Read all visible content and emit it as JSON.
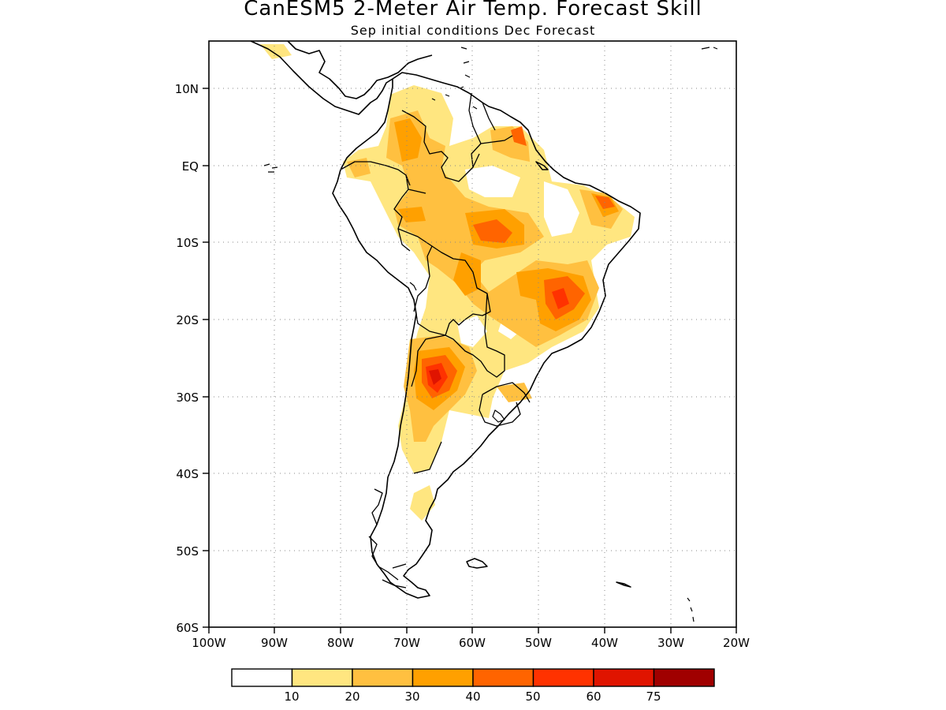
{
  "header": {
    "title": "CanESM5 2-Meter Air Temp. Forecast Skill",
    "subtitle": "Sep initial conditions  Dec Forecast"
  },
  "map": {
    "lon_range": [
      -100,
      -20
    ],
    "lat_range": [
      -60,
      15
    ],
    "lon_ticks": [
      "100W",
      "90W",
      "80W",
      "70W",
      "60W",
      "50W",
      "40W",
      "30W",
      "20W"
    ],
    "lat_ticks": [
      "10N",
      "EQ",
      "10S",
      "20S",
      "30S",
      "40S",
      "50S",
      "60S"
    ],
    "grid": "dotted"
  },
  "legend": {
    "labels": [
      "10",
      "20",
      "30",
      "40",
      "50",
      "60",
      "75"
    ],
    "colors": [
      "#ffffff",
      "#ffe680",
      "#ffc040",
      "#ffa000",
      "#ff6400",
      "#ff3200",
      "#e01400",
      "#a00000"
    ]
  }
}
